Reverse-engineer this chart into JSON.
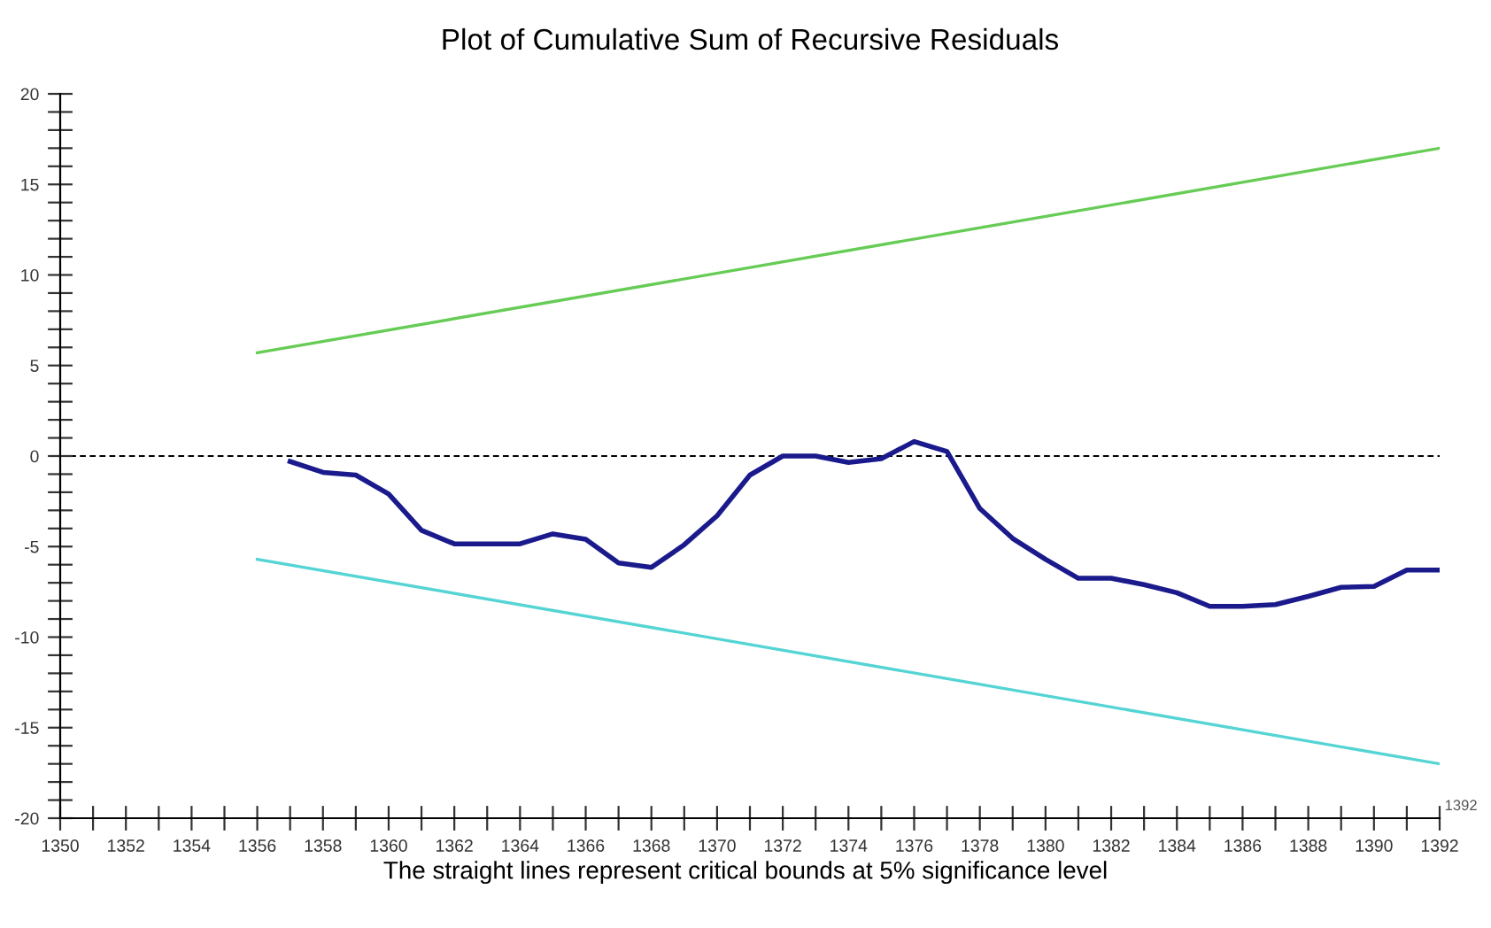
{
  "chart_data": {
    "type": "line",
    "title": "Plot of Cumulative Sum of Recursive Residuals",
    "xlabel": "1392",
    "annotations": [
      "The straight lines represent critical bounds at 5% significance level"
    ],
    "series": [
      {
        "color": "#1a1a8c",
        "x": [
          1357,
          1358,
          1359,
          1360,
          1361,
          1362,
          1363,
          1364,
          1365,
          1366,
          1367,
          1368,
          1369,
          1370,
          1371,
          1372,
          1373,
          1374,
          1375,
          1376,
          1377,
          1378,
          1379,
          1380,
          1381,
          1382,
          1383,
          1384,
          1385,
          1386,
          1387,
          1388,
          1389,
          1390,
          1391,
          1392
        ],
        "values": [
          -0.3,
          -0.9,
          -1.05,
          -2.1,
          -4.1,
          -4.85,
          -4.85,
          -4.85,
          -4.3,
          -4.6,
          -5.9,
          -6.15,
          -4.9,
          -3.3,
          -1.05,
          0,
          0,
          -0.35,
          -0.15,
          0.8,
          0.25,
          -2.9,
          -4.55,
          -5.7,
          -6.75,
          -6.75,
          -7.1,
          -7.55,
          -8.3,
          -8.3,
          -8.2,
          -7.75,
          -7.25,
          -7.2,
          -6.3,
          -6.3
        ]
      },
      {
        "color": "#66cc55",
        "x": [
          1356,
          1392
        ],
        "values": [
          5.7,
          17.0
        ]
      },
      {
        "color": "#55d4d4",
        "x": [
          1356,
          1392
        ],
        "values": [
          -5.7,
          -17.0
        ]
      }
    ],
    "ref_lines": [
      {
        "axis": "y",
        "value": 0,
        "color": "#000000",
        "line_style": "dashed"
      }
    ],
    "xlim": [
      1350,
      1392
    ],
    "xticks": [
      1350,
      {
        "value": 1351,
        "label": null
      },
      1352,
      {
        "value": 1353,
        "label": null
      },
      1354,
      {
        "value": 1355,
        "label": null
      },
      1356,
      {
        "value": 1357,
        "label": null
      },
      1358,
      {
        "value": 1359,
        "label": null
      },
      1360,
      {
        "value": 1361,
        "label": null
      },
      1362,
      {
        "value": 1363,
        "label": null
      },
      1364,
      {
        "value": 1365,
        "label": null
      },
      1366,
      {
        "value": 1367,
        "label": null
      },
      1368,
      {
        "value": 1369,
        "label": null
      },
      1370,
      {
        "value": 1371,
        "label": null
      },
      1372,
      {
        "value": 1373,
        "label": null
      },
      1374,
      {
        "value": 1375,
        "label": null
      },
      1376,
      {
        "value": 1377,
        "label": null
      },
      1378,
      {
        "value": 1379,
        "label": null
      },
      1380,
      {
        "value": 1381,
        "label": null
      },
      1382,
      {
        "value": 1383,
        "label": null
      },
      1384,
      {
        "value": 1385,
        "label": null
      },
      1386,
      {
        "value": 1387,
        "label": null
      },
      1388,
      {
        "value": 1389,
        "label": null
      },
      1390,
      {
        "value": 1391,
        "label": null
      },
      1392
    ],
    "ylim": [
      -20,
      20
    ],
    "yticks": [
      -20,
      {
        "value": -19,
        "label": null
      },
      {
        "value": -18,
        "label": null
      },
      {
        "value": -17,
        "label": null
      },
      {
        "value": -16,
        "label": null
      },
      -15,
      {
        "value": -14,
        "label": null
      },
      {
        "value": -13,
        "label": null
      },
      {
        "value": -12,
        "label": null
      },
      {
        "value": -11,
        "label": null
      },
      -10,
      {
        "value": -9,
        "label": null
      },
      {
        "value": -8,
        "label": null
      },
      {
        "value": -7,
        "label": null
      },
      {
        "value": -6,
        "label": null
      },
      -5,
      {
        "value": -4,
        "label": null
      },
      {
        "value": -3,
        "label": null
      },
      {
        "value": -2,
        "label": null
      },
      {
        "value": -1,
        "label": null
      },
      0,
      {
        "value": 1,
        "label": null
      },
      {
        "value": 2,
        "label": null
      },
      {
        "value": 3,
        "label": null
      },
      {
        "value": 4,
        "label": null
      },
      5,
      {
        "value": 6,
        "label": null
      },
      {
        "value": 7,
        "label": null
      },
      {
        "value": 8,
        "label": null
      },
      {
        "value": 9,
        "label": null
      },
      10,
      {
        "value": 11,
        "label": null
      },
      {
        "value": 12,
        "label": null
      },
      {
        "value": 13,
        "label": null
      },
      {
        "value": 14,
        "label": null
      },
      15,
      {
        "value": 16,
        "label": null
      },
      {
        "value": 17,
        "label": null
      },
      {
        "value": 18,
        "label": null
      },
      {
        "value": 19,
        "label": null
      },
      20
    ],
    "grid": false,
    "legend": false,
    "marker": "none",
    "line_style": "solid"
  }
}
